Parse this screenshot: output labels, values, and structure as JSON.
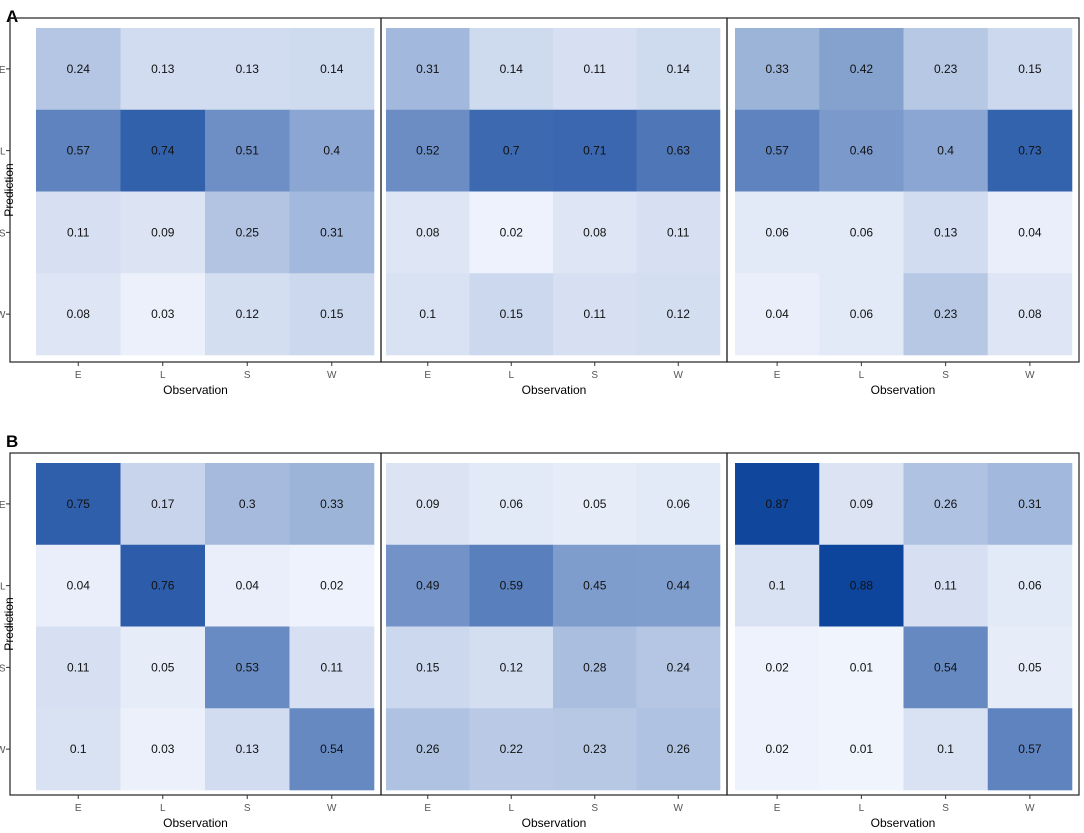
{
  "chart_data": {
    "type": "heatmap",
    "categories": [
      "E",
      "L",
      "S",
      "W"
    ],
    "xlabel": "Observation",
    "ylabel": "Prediction",
    "rows_top_to_bottom": [
      "E",
      "L",
      "S",
      "W"
    ],
    "color_scale": {
      "low": "#f3f6fe",
      "high": "#08419a",
      "range": [
        0,
        0.9
      ]
    },
    "panels": [
      {
        "label": "A",
        "matrices": [
          [
            [
              0.24,
              0.13,
              0.13,
              0.14
            ],
            [
              0.57,
              0.74,
              0.51,
              0.4
            ],
            [
              0.11,
              0.09,
              0.25,
              0.31
            ],
            [
              0.08,
              0.03,
              0.12,
              0.15
            ]
          ],
          [
            [
              0.31,
              0.14,
              0.11,
              0.14
            ],
            [
              0.52,
              0.7,
              0.71,
              0.63
            ],
            [
              0.08,
              0.02,
              0.08,
              0.11
            ],
            [
              0.1,
              0.15,
              0.11,
              0.12
            ]
          ],
          [
            [
              0.33,
              0.42,
              0.23,
              0.15
            ],
            [
              0.57,
              0.46,
              0.4,
              0.73
            ],
            [
              0.06,
              0.06,
              0.13,
              0.04
            ],
            [
              0.04,
              0.06,
              0.23,
              0.08
            ]
          ]
        ]
      },
      {
        "label": "B",
        "matrices": [
          [
            [
              0.75,
              0.17,
              0.3,
              0.33
            ],
            [
              0.04,
              0.76,
              0.04,
              0.02
            ],
            [
              0.11,
              0.05,
              0.53,
              0.11
            ],
            [
              0.1,
              0.03,
              0.13,
              0.54
            ]
          ],
          [
            [
              0.09,
              0.06,
              0.05,
              0.06
            ],
            [
              0.49,
              0.59,
              0.45,
              0.44
            ],
            [
              0.15,
              0.12,
              0.28,
              0.24
            ],
            [
              0.26,
              0.22,
              0.23,
              0.26
            ]
          ],
          [
            [
              0.87,
              0.09,
              0.26,
              0.31
            ],
            [
              0.1,
              0.88,
              0.11,
              0.06
            ],
            [
              0.02,
              0.01,
              0.54,
              0.05
            ],
            [
              0.02,
              0.01,
              0.1,
              0.57
            ]
          ]
        ]
      }
    ]
  }
}
